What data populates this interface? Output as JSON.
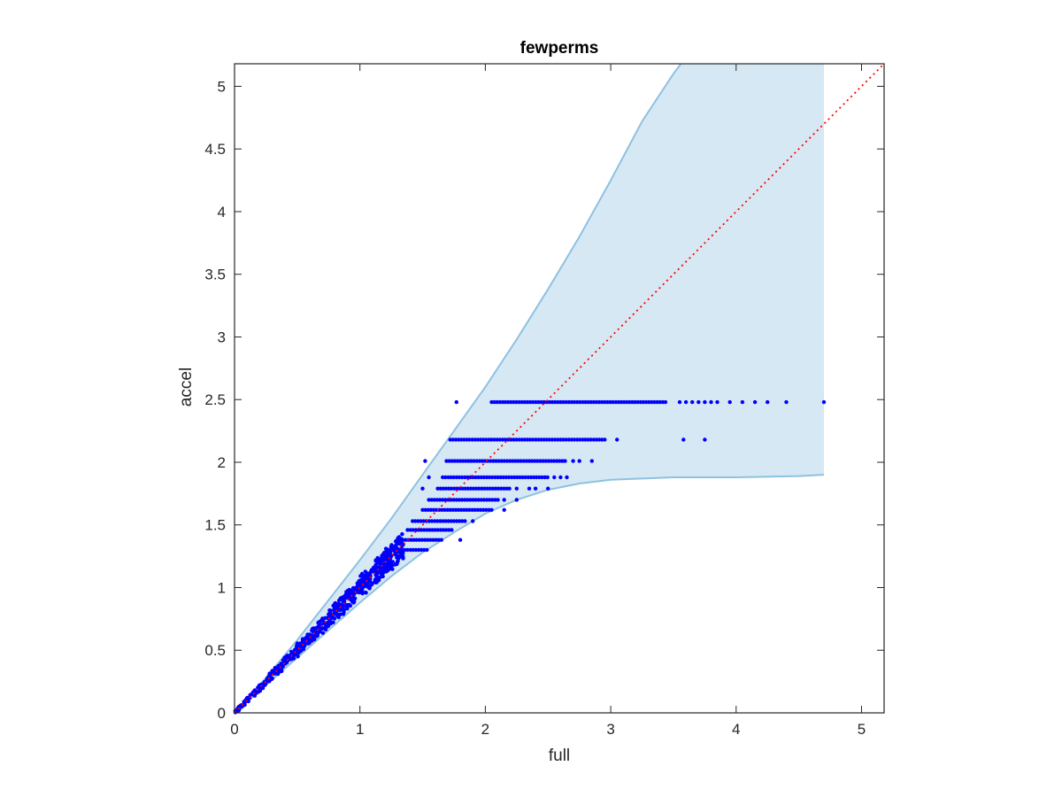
{
  "chart_data": {
    "type": "scatter",
    "title": "fewperms",
    "xlabel": "full",
    "ylabel": "accel",
    "xlim": [
      0,
      5.18
    ],
    "ylim": [
      0,
      5.18
    ],
    "xticks": [
      0,
      1,
      2,
      3,
      4,
      5
    ],
    "yticks": [
      0,
      0.5,
      1,
      1.5,
      2,
      2.5,
      3,
      3.5,
      4,
      4.5,
      5
    ],
    "grid": false,
    "legend": "none",
    "colors": {
      "points": "#0000ff",
      "band_fill": "#d6e8f4",
      "band_edge": "#8fc1e0",
      "diagonal": "#ff0000",
      "axes": "#262626"
    },
    "band": {
      "x_end": 4.7,
      "upper": [
        [
          0,
          0
        ],
        [
          0.25,
          0.28
        ],
        [
          0.5,
          0.58
        ],
        [
          0.75,
          0.9
        ],
        [
          1,
          1.22
        ],
        [
          1.25,
          1.55
        ],
        [
          1.5,
          1.9
        ],
        [
          1.75,
          2.25
        ],
        [
          2,
          2.6
        ],
        [
          2.25,
          2.98
        ],
        [
          2.5,
          3.38
        ],
        [
          2.75,
          3.8
        ],
        [
          3,
          4.25
        ],
        [
          3.25,
          4.72
        ],
        [
          3.5,
          5.1
        ],
        [
          3.56,
          5.18
        ],
        [
          4.7,
          5.18
        ]
      ],
      "lower": [
        [
          0,
          0
        ],
        [
          0.25,
          0.22
        ],
        [
          0.5,
          0.44
        ],
        [
          0.75,
          0.66
        ],
        [
          1,
          0.88
        ],
        [
          1.25,
          1.09
        ],
        [
          1.5,
          1.28
        ],
        [
          1.75,
          1.44
        ],
        [
          2,
          1.59
        ],
        [
          2.25,
          1.7
        ],
        [
          2.5,
          1.78
        ],
        [
          2.75,
          1.83
        ],
        [
          3,
          1.86
        ],
        [
          3.25,
          1.87
        ],
        [
          3.5,
          1.88
        ],
        [
          4,
          1.88
        ],
        [
          4.5,
          1.89
        ],
        [
          4.7,
          1.9
        ]
      ]
    },
    "diagonal": {
      "from": [
        0,
        0
      ],
      "to": [
        5.18,
        5.18
      ],
      "style": "dotted"
    },
    "dense_region": {
      "x_max": 1.35,
      "note": "dense cloud of points scattered along the diagonal"
    },
    "series": [
      {
        "levels": [
          {
            "y": 2.48,
            "x_min": 2.05,
            "x_max": 3.45,
            "extra_x": [
              1.77,
              3.55,
              3.6,
              3.65,
              3.7,
              3.75,
              3.8,
              3.85,
              3.95,
              4.05,
              4.15,
              4.25,
              4.4,
              4.7
            ]
          },
          {
            "y": 2.18,
            "x_min": 1.72,
            "x_max": 2.97,
            "extra_x": [
              3.05,
              3.58,
              3.75
            ]
          },
          {
            "y": 2.01,
            "x_min": 1.69,
            "x_max": 2.65,
            "extra_x": [
              1.52,
              2.7,
              2.75,
              2.85
            ]
          },
          {
            "y": 1.88,
            "x_min": 1.66,
            "x_max": 2.5,
            "extra_x": [
              1.55,
              2.55,
              2.6,
              2.65
            ]
          },
          {
            "y": 1.79,
            "x_min": 1.62,
            "x_max": 2.2,
            "extra_x": [
              1.5,
              2.25,
              2.35,
              2.4,
              2.5
            ]
          },
          {
            "y": 1.7,
            "x_min": 1.55,
            "x_max": 2.1,
            "extra_x": [
              2.15,
              2.25
            ]
          },
          {
            "y": 1.62,
            "x_min": 1.5,
            "x_max": 2.05,
            "extra_x": [
              2.15
            ]
          },
          {
            "y": 1.53,
            "x_min": 1.42,
            "x_max": 1.85,
            "extra_x": [
              1.9
            ]
          },
          {
            "y": 1.46,
            "x_min": 1.38,
            "x_max": 1.75,
            "extra_x": []
          },
          {
            "y": 1.38,
            "x_min": 1.32,
            "x_max": 1.65,
            "extra_x": [
              1.8
            ]
          },
          {
            "y": 1.3,
            "x_min": 1.27,
            "x_max": 1.55,
            "extra_x": []
          }
        ]
      }
    ]
  }
}
